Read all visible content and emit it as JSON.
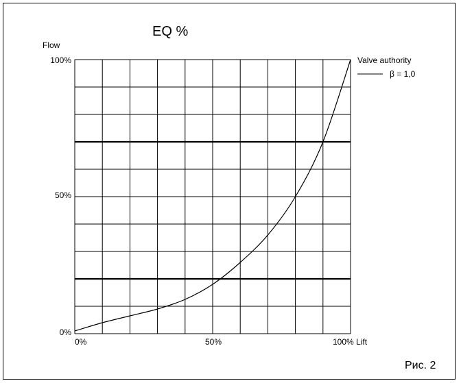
{
  "figure_label": "Рис. 2",
  "chart_data": {
    "type": "line",
    "title": "EQ %",
    "ylabel": "Flow",
    "xlabel": "Lift",
    "x_tick_labels": [
      "0%",
      "50%",
      "100% Lift"
    ],
    "y_tick_labels": [
      "0%",
      "50%",
      "100%"
    ],
    "xlim": [
      0,
      100
    ],
    "ylim": [
      0,
      100
    ],
    "grid": true,
    "x_grid_divisions": 10,
    "y_grid_divisions": 10,
    "bold_y_gridlines": [
      20,
      70
    ],
    "bold_x_gridlines": [],
    "legend": {
      "title": "Valve authority",
      "entries": [
        {
          "label": "β = 1,0"
        }
      ],
      "placement": "top-right outside"
    },
    "series": [
      {
        "x": [
          0,
          10,
          20,
          30,
          40,
          50,
          60,
          70,
          80,
          90,
          100
        ],
        "y": [
          1,
          4,
          6.5,
          9,
          12.5,
          18,
          26,
          36,
          50,
          70,
          100
        ]
      }
    ]
  }
}
